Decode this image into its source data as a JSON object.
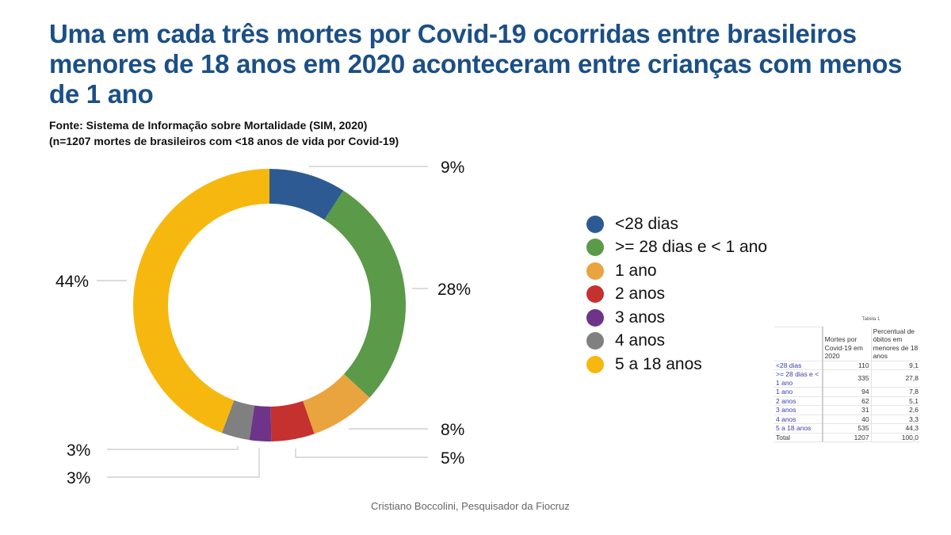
{
  "header": {
    "title": "Uma em cada três mortes por Covid-19 ocorridas entre brasileiros menores de 18 anos em 2020 aconteceram entre crianças com menos de 1 ano",
    "source_line1": "Fonte: Sistema de Informação sobre Mortalidade (SIM, 2020)",
    "source_line2": "(n=1207 mortes de brasileiros com <18 anos de vida por Covid-19)"
  },
  "credit": "Cristiano Boccolini, Pesquisador da Fiocruz",
  "chart_data": {
    "type": "pie",
    "variant": "donut",
    "title": "Uma em cada três mortes por Covid-19 ocorridas entre brasileiros menores de 18 anos em 2020 aconteceram entre crianças com menos de 1 ano",
    "categories": [
      "<28 dias",
      ">= 28 dias e < 1 ano",
      "1 ano",
      "2 anos",
      "3 anos",
      "4 anos",
      "5 a 18 anos"
    ],
    "values": [
      110,
      335,
      94,
      62,
      31,
      40,
      535
    ],
    "percent_labels": [
      "9%",
      "28%",
      "8%",
      "5%",
      "3%",
      "3%",
      "44%"
    ],
    "colors": [
      "#2e5a93",
      "#5a9a48",
      "#e9a33f",
      "#c4312f",
      "#6d3489",
      "#808080",
      "#f6b80f"
    ],
    "total": 1207,
    "legend_position": "right",
    "start_angle": "top, clockwise"
  },
  "legend": {
    "items": [
      {
        "label": "<28 dias",
        "color": "#2e5a93"
      },
      {
        "label": ">= 28 dias e < 1 ano",
        "color": "#5a9a48"
      },
      {
        "label": "1 ano",
        "color": "#e9a33f"
      },
      {
        "label": "2 anos",
        "color": "#c4312f"
      },
      {
        "label": "3 anos",
        "color": "#6d3489"
      },
      {
        "label": "4 anos",
        "color": "#808080"
      },
      {
        "label": "5 a 18 anos",
        "color": "#f6b80f"
      }
    ]
  },
  "table": {
    "caption": "Tabela 1",
    "headers": [
      "",
      "Mortes por Covid-19 em 2020",
      "Percentual de óbitos em menores de 18 anos"
    ],
    "rows": [
      {
        "label": "<28 dias",
        "deaths": "110",
        "pct": "9,1"
      },
      {
        "label": ">= 28 dias e < 1 ano",
        "deaths": "335",
        "pct": "27,8"
      },
      {
        "label": "1 ano",
        "deaths": "94",
        "pct": "7,8"
      },
      {
        "label": "2 anos",
        "deaths": "62",
        "pct": "5,1"
      },
      {
        "label": "3 anos",
        "deaths": "31",
        "pct": "2,6"
      },
      {
        "label": "4 anos",
        "deaths": "40",
        "pct": "3,3"
      },
      {
        "label": "5 a 18 anos",
        "deaths": "535",
        "pct": "44,3"
      }
    ],
    "total": {
      "label": "Total",
      "deaths": "1207",
      "pct": "100,0"
    }
  }
}
